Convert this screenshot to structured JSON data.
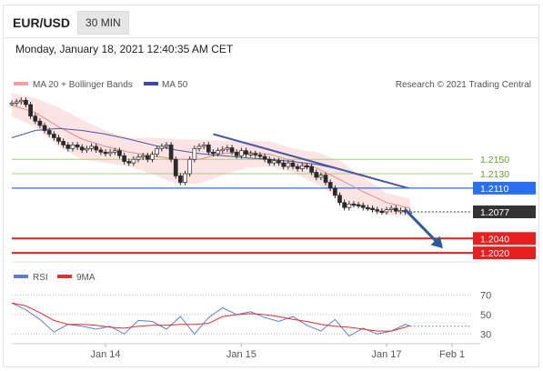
{
  "header": {
    "symbol": "EUR/USD",
    "timeframe": "30 MIN",
    "timestamp": "Monday, January 18, 2021 12:40:35 AM CET"
  },
  "legend": {
    "ma20": "MA 20 + Bollinger Bands",
    "ma50": "MA 50",
    "credit": "Research © 2021 Trading Central",
    "rsi": "RSI",
    "rsi_ma": "9MA"
  },
  "colors": {
    "candle": "#2b2b2b",
    "ma20": "#e88a8a",
    "bollinger": "#fde1e1",
    "ma50": "#4a57a6",
    "trendline": "#4a57a6",
    "green_level": "#a7cc7f",
    "blue_level": "#2b6ff1",
    "red_level": "#e81f1f",
    "current": "#333333",
    "arrow": "#2a5a9e",
    "rsi": "#5b7fd9",
    "rsi_ma": "#e03030"
  },
  "chart_data": [
    {
      "type": "line",
      "title": "EUR/USD 30 MIN",
      "x_ticks": [
        "Jan 14",
        "Jan 15",
        "Jan 17",
        "Feb 1"
      ],
      "x_range": [
        0,
        100
      ],
      "x_tick_positions": [
        20,
        49,
        80,
        94
      ],
      "ylim": [
        1.2005,
        1.2245
      ],
      "levels": [
        {
          "value": 1.215,
          "label": "1.2150",
          "kind": "resistance",
          "color": "#a7cc7f"
        },
        {
          "value": 1.213,
          "label": "1.2130",
          "kind": "resistance",
          "color": "#a7cc7f"
        },
        {
          "value": 1.211,
          "label": "1.2110",
          "kind": "pivot",
          "color": "#2b6ff1"
        },
        {
          "value": 1.2077,
          "label": "1.2077",
          "kind": "current",
          "color": "#333333"
        },
        {
          "value": 1.204,
          "label": "1.2040",
          "kind": "support",
          "color": "#e81f1f"
        },
        {
          "value": 1.202,
          "label": "1.2020",
          "kind": "support",
          "color": "#e81f1f"
        }
      ],
      "series": [
        {
          "name": "Price",
          "x": [
            0,
            1,
            2,
            3,
            4,
            5,
            6,
            7,
            8,
            9,
            10,
            11,
            12,
            13,
            14,
            15,
            16,
            17,
            18,
            19,
            20,
            21,
            22,
            23,
            24,
            25,
            26,
            27,
            28,
            29,
            30,
            31,
            32,
            33,
            34,
            35,
            36,
            37,
            38,
            39,
            40,
            41,
            42,
            43,
            44,
            45,
            46,
            47,
            48,
            49,
            50,
            51,
            52,
            53,
            54,
            55,
            56,
            57,
            58,
            59,
            60,
            61,
            62,
            63,
            64,
            65,
            66,
            67,
            68,
            69,
            70,
            71,
            72,
            73,
            74,
            75,
            76,
            77,
            78,
            79,
            80,
            81,
            82,
            83,
            84,
            85
          ],
          "values": [
            1.2228,
            1.223,
            1.2232,
            1.2226,
            1.221,
            1.2203,
            1.2197,
            1.219,
            1.2185,
            1.218,
            1.2175,
            1.217,
            1.2165,
            1.217,
            1.2167,
            1.2163,
            1.2165,
            1.2168,
            1.2163,
            1.216,
            1.2158,
            1.216,
            1.2162,
            1.2155,
            1.2147,
            1.2145,
            1.215,
            1.2153,
            1.2155,
            1.215,
            1.2157,
            1.2165,
            1.2168,
            1.217,
            1.215,
            1.2127,
            1.2118,
            1.213,
            1.215,
            1.2165,
            1.2168,
            1.217,
            1.216,
            1.2158,
            1.2162,
            1.2164,
            1.2166,
            1.216,
            1.2155,
            1.2162,
            1.2157,
            1.2158,
            1.2156,
            1.2154,
            1.215,
            1.2145,
            1.2148,
            1.2145,
            1.214,
            1.2145,
            1.214,
            1.2137,
            1.2141,
            1.214,
            1.2132,
            1.2125,
            1.2128,
            1.2118,
            1.211,
            1.21,
            1.209,
            1.2083,
            1.2088,
            1.2087,
            1.2086,
            1.2083,
            1.2082,
            1.208,
            1.2078,
            1.2077,
            1.208,
            1.2082,
            1.2078,
            1.2079,
            1.2077,
            1.2077
          ]
        },
        {
          "name": "MA 20",
          "x": [
            0,
            5,
            10,
            15,
            20,
            25,
            30,
            35,
            40,
            45,
            50,
            55,
            60,
            65,
            70,
            75,
            80,
            85
          ],
          "values": [
            1.2225,
            1.2215,
            1.2195,
            1.2178,
            1.2168,
            1.216,
            1.2155,
            1.215,
            1.215,
            1.2158,
            1.216,
            1.2157,
            1.2148,
            1.2138,
            1.2122,
            1.2105,
            1.209,
            1.2082
          ]
        },
        {
          "name": "MA 50",
          "x": [
            0,
            5,
            10,
            15,
            20,
            25,
            30,
            35,
            40,
            45,
            50,
            55,
            60,
            65,
            70,
            75,
            80,
            85
          ],
          "values": [
            1.218,
            1.219,
            1.2193,
            1.219,
            1.2185,
            1.2178,
            1.217,
            1.2163,
            1.2158,
            1.2155,
            1.2152,
            1.215,
            1.2147,
            1.2143,
            1.2136,
            1.2128,
            1.2118,
            1.211
          ]
        },
        {
          "name": "Bollinger Upper",
          "x": [
            0,
            5,
            10,
            15,
            20,
            25,
            30,
            35,
            40,
            45,
            50,
            55,
            60,
            65,
            70,
            75,
            80,
            85
          ],
          "values": [
            1.2242,
            1.2235,
            1.2222,
            1.2205,
            1.219,
            1.218,
            1.218,
            1.2178,
            1.2177,
            1.2176,
            1.2175,
            1.2175,
            1.2165,
            1.216,
            1.2148,
            1.2125,
            1.2103,
            1.2095
          ]
        },
        {
          "name": "Bollinger Lower",
          "x": [
            0,
            5,
            10,
            15,
            20,
            25,
            30,
            35,
            40,
            45,
            50,
            55,
            60,
            65,
            70,
            75,
            80,
            85
          ],
          "values": [
            1.221,
            1.2195,
            1.2168,
            1.215,
            1.2145,
            1.214,
            1.213,
            1.2116,
            1.2116,
            1.2128,
            1.2138,
            1.214,
            1.2132,
            1.2116,
            1.2096,
            1.2081,
            1.2073,
            1.2071
          ]
        }
      ],
      "trendline": {
        "x": [
          43,
          84
        ],
        "values": [
          1.2185,
          1.2111
        ]
      },
      "forecast_arrow": {
        "x": [
          84,
          91.5
        ],
        "values": [
          1.208,
          1.203
        ]
      }
    },
    {
      "type": "line",
      "title": "RSI",
      "ylim": [
        20,
        80
      ],
      "y_ticks": [
        70,
        50,
        30
      ],
      "series": [
        {
          "name": "RSI",
          "x": [
            0,
            3,
            6,
            9,
            12,
            15,
            18,
            21,
            24,
            27,
            30,
            33,
            36,
            39,
            42,
            45,
            48,
            51,
            54,
            57,
            60,
            63,
            66,
            69,
            72,
            75,
            78,
            81,
            84,
            85
          ],
          "values": [
            62,
            55,
            45,
            32,
            40,
            38,
            35,
            38,
            30,
            44,
            43,
            35,
            48,
            30,
            47,
            57,
            50,
            53,
            47,
            43,
            48,
            39,
            33,
            45,
            28,
            36,
            30,
            33,
            40,
            38
          ]
        },
        {
          "name": "9MA",
          "x": [
            0,
            3,
            6,
            9,
            12,
            15,
            18,
            21,
            24,
            27,
            30,
            33,
            36,
            39,
            42,
            45,
            48,
            51,
            54,
            57,
            60,
            63,
            66,
            69,
            72,
            75,
            78,
            81,
            84,
            85
          ],
          "values": [
            62,
            59,
            52,
            44,
            40,
            40,
            39,
            37,
            36,
            38,
            39,
            39,
            40,
            40,
            41,
            48,
            50,
            51,
            50,
            48,
            45,
            43,
            40,
            38,
            37,
            35,
            33,
            33,
            37,
            39
          ]
        }
      ]
    }
  ]
}
